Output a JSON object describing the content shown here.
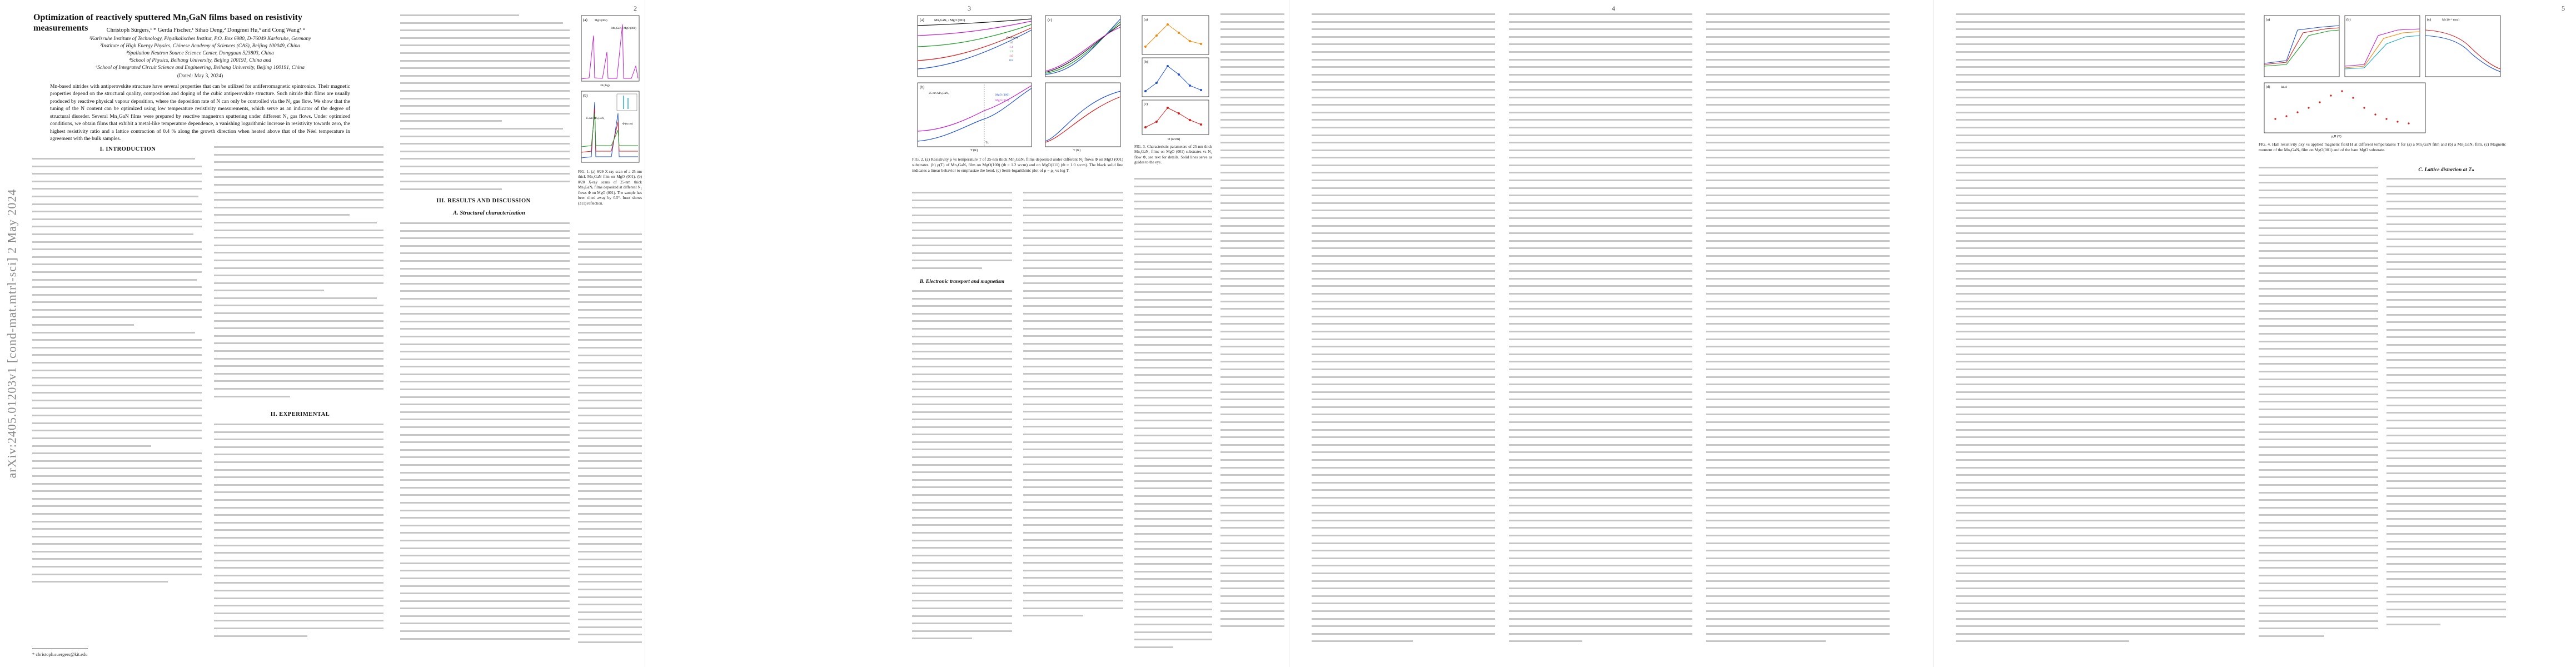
{
  "document": {
    "arxiv_id": "arXiv:2405.01203v1  [cond-mat.mtrl-sci]  2 May 2024",
    "page_numbers": [
      "2",
      "3",
      "4",
      "5"
    ]
  },
  "front_matter": {
    "title": "Optimization of reactively sputtered Mn₃GaN films based on resistivity measurements",
    "authors": "Christoph Sürgers,¹ * Gerda Fischer,¹ Sihao Deng,² Dongmei Hu,³ and Cong Wang³ ⁴",
    "affiliations": [
      "¹Karlsruhe Institute of Technology, Physikalisches Institut, P.O. Box 6980, D-76049 Karlsruhe, Germany",
      "²Institute of High Energy Physics, Chinese Academy of Sciences (CAS), Beijing 100049, China",
      "³Spallation Neutron Source Science Center, Dongguan 523803, China",
      "⁴School of Physics, Beihang University, Beijing 100191, China and",
      "⁴School of Integrated Circuit Science and Engineering, Beihang University, Beijing 100191, China"
    ],
    "date": "(Dated: May 3, 2024)",
    "abstract": "Mn-based nitrides with antiperovskite structure have several properties that can be utilized for antiferromagnetic spintronics. Their magnetic properties depend on the structural quality, composition and doping of the cubic antiperovskite structure. Such nitride thin films are usually produced by reactive physical vapour deposition, where the deposition rate of N can only be controlled via the N₂ gas flow. We show that the tuning of the N content can be optimized using low temperature resistivity measurements, which serve as an indicator of the degree of structural disorder. Several Mn₃GaN films were prepared by reactive magnetron sputtering under different N₂ gas flows. Under optimized conditions, we obtain films that exhibit a metal-like temperature dependence, a vanishing logarithmic increase in resistivity towards zero, the highest resistivity ratio and a lattice contraction of 0.4 % along the growth direction when heated above that of the Néel temperature in agreement with the bulk samples.",
    "footnote": "* christoph.suergers@kit.edu"
  },
  "sections": {
    "intro": "I.  INTRODUCTION",
    "experimental": "II.  EXPERIMENTAL",
    "results": "III.  RESULTS AND DISCUSSION",
    "structural": "A.  Structural characterization",
    "transport": "B.  Electronic transport and magnetism",
    "lattice": "C.  Lattice distortion at Tₙ"
  },
  "captions": {
    "fig1": "FIG. 1. (a) θ/2θ X-ray scan of a 25-nm thick Mn₃GaN film on MgO (001). (b) θ/2θ X-ray scans of 25-nm thick Mn₃GaNₓ films deposited at different N₂ flows Φ on MgO (001). The sample has been tilted away by 0.5°. Inset shows (311) reflection.",
    "fig2": "FIG. 2. (a) Resistivity ρ vs temperature T of 25-nm thick Mn₃GaNₓ films deposited under different N₂ flows Φ on MgO (001) substrates. (b) ρ(T) of Mn₃GaNₓ film on MgO(100) (Φ = 1.2 sccm) and on MgO(111) (Φ = 1.0 sccm). The black solid line indicates a linear behavior to emphasize the bend. (c) Semi-logarithmic plot of ρ − ρ₀ vs log T.",
    "fig3": "FIG. 3. Characteristic parameters of 25-nm thick Mn₃GaNₓ films on MgO (001) substrates vs N₂ flow Φ, see text for details. Solid lines serve as guides to the eye.",
    "fig4": "FIG. 4. Hall resistivity ρxy vs applied magnetic field H at different temperatures T for (a) a Mn₃GaN film and (b) a Mn₃GaNₓ film. (c) Magnetic moment of the Mn₃GaNₓ film on MgO(001) and of the bare MgO substrate."
  },
  "fig1": {
    "panel_a": "(a)",
    "panel_b": "(b)",
    "film_a": "Mn₃GaN / MgO (001)",
    "film_b": "25 nm Mn₃GaNₓ",
    "peaks": [
      "MgO (002)",
      "(002)",
      "(004)",
      "(002)",
      "(008)"
    ],
    "flow_label": "Φ (sccm)",
    "flows": [
      "0.6",
      "1.0",
      "1.2",
      "1.4",
      "1.6"
    ],
    "xlabel": "2θ (deg)",
    "ylabel": "Intensity (10³ counts)"
  },
  "fig2": {
    "panel_a": "(a)",
    "panel_b": "(b)",
    "panel_c": "(c)",
    "title_a": "Mn₃GaNₓ / MgO (001)",
    "legend": [
      "Φ (sccm)",
      "1.6",
      "1.4",
      "1.2",
      "1.0",
      "0.8"
    ],
    "subs": [
      "MgO (100)",
      "MgO (111)",
      "25 nm Mn₃GaNₓ"
    ],
    "xlabel": "T (K)",
    "ylabel": "ρ (μΩcm)",
    "tn_label": "Tₙ"
  },
  "fig3": {
    "panel_labels": [
      "(a)",
      "(b)",
      "(c)"
    ],
    "xlabel": "Φ (sccm)",
    "ylabels": [
      "ρ₀",
      "RRR",
      "Tₙ (K)"
    ]
  },
  "fig4": {
    "panel_labels": [
      "(a)",
      "(b)",
      "(c)",
      "(d)"
    ],
    "xlabel": "μ₀H (T)",
    "ylabel": "ρxy (μΩcm)",
    "c_label": "M (10⁻⁴ emu)",
    "d_label": "Δd/d"
  },
  "colors": {
    "blue": "#1f4fd1",
    "red": "#d81b1b",
    "magenta": "#c21ec9",
    "green": "#1f9b2a",
    "orange": "#f08a0a",
    "black": "#111111",
    "cyan": "#17a6c7",
    "purple": "#6a3bbf"
  }
}
